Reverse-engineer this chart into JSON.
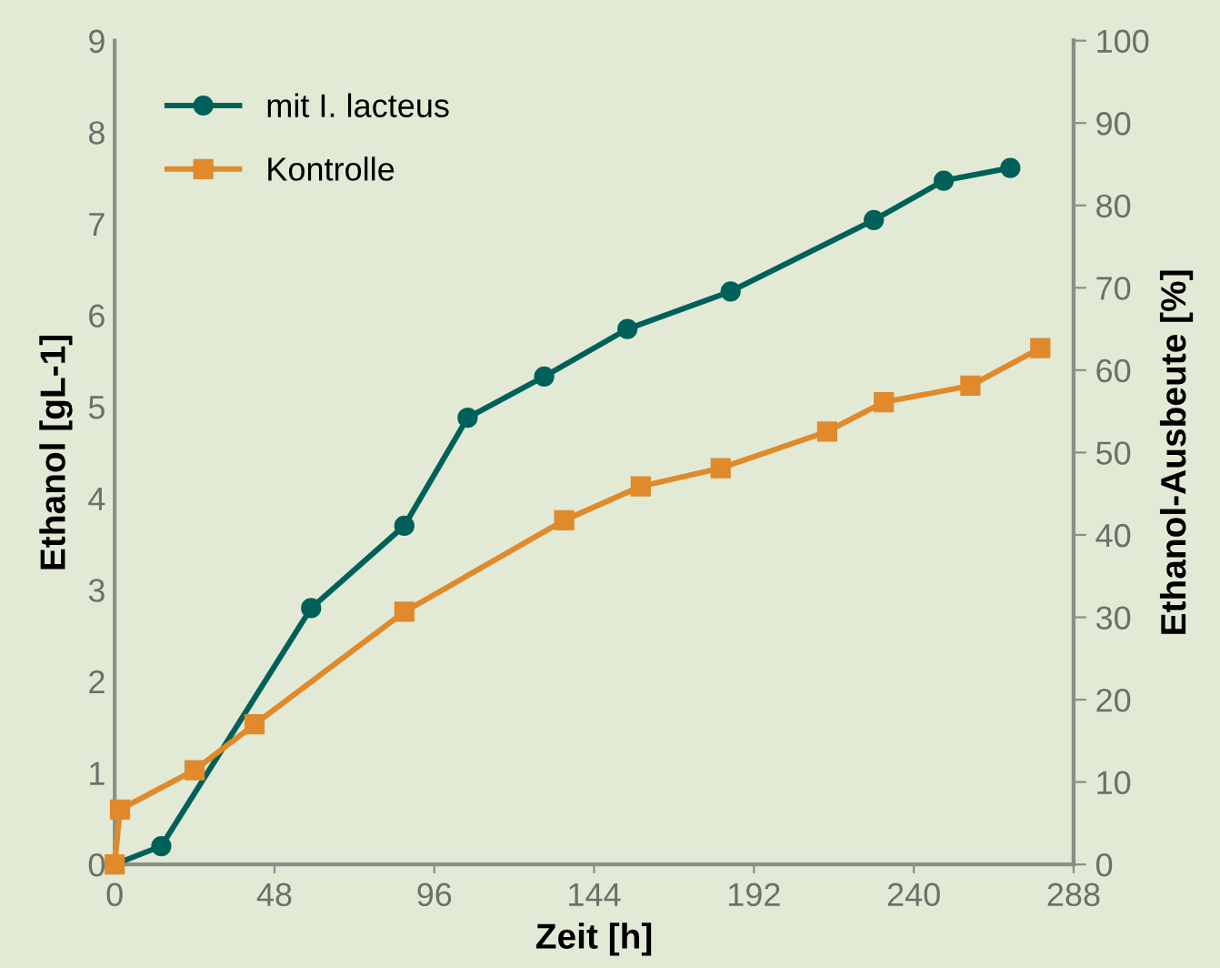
{
  "chart_data": {
    "type": "line",
    "xlabel": "Zeit [h]",
    "ylabel": "Ethanol [gL-1]",
    "y2label": "Ethanol-Ausbeute [%]",
    "xlim": [
      0,
      288
    ],
    "xticks": [
      0,
      48,
      96,
      144,
      192,
      240,
      288
    ],
    "ylim": [
      0,
      9
    ],
    "yticks": [
      0,
      1,
      2,
      3,
      4,
      5,
      6,
      7,
      8,
      9
    ],
    "y2lim": [
      0,
      100
    ],
    "y2ticks": [
      0,
      10,
      20,
      30,
      40,
      50,
      60,
      70,
      80,
      90,
      100
    ],
    "legend": "top left",
    "grid": false,
    "line_style": "solid",
    "series": [
      {
        "name": "mit I. lacteus",
        "color": "#00605a",
        "marker": "circle",
        "x": [
          0,
          14,
          59,
          87,
          106,
          129,
          154,
          185,
          228,
          249,
          269
        ],
        "values": [
          0,
          0.2,
          2.8,
          3.7,
          4.88,
          5.33,
          5.85,
          6.26,
          7.04,
          7.47,
          7.61
        ]
      },
      {
        "name": "Kontrolle",
        "color": "#e08a2b",
        "marker": "square",
        "x": [
          0,
          1.6,
          24,
          42,
          87,
          135,
          158,
          182,
          214,
          231,
          257,
          278
        ],
        "values": [
          0,
          0.6,
          1.03,
          1.53,
          2.76,
          3.76,
          4.13,
          4.33,
          4.73,
          5.05,
          5.23,
          5.64
        ]
      }
    ]
  }
}
